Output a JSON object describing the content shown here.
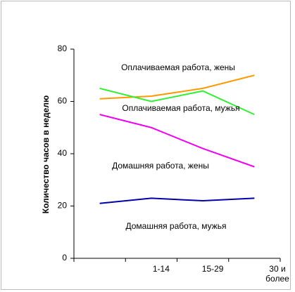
{
  "chart_data": {
    "type": "line",
    "y_label": "Количество часов в неделю",
    "categories": [
      null,
      "1-14",
      "15-29",
      "30 и более"
    ],
    "series": [
      {
        "name": "Оплачиваемая работа, жены",
        "color": "#ff9900",
        "values": [
          61,
          62,
          65,
          70
        ]
      },
      {
        "name": "Оплачиваемая работа, мужья",
        "color": "#33ee33",
        "values": [
          65,
          60,
          64,
          55
        ]
      },
      {
        "name": "Домашняя работа, жены",
        "color": "#ee00ee",
        "values": [
          55,
          50,
          42,
          35
        ]
      },
      {
        "name": "Домашняя работа, мужья",
        "color": "#0000aa",
        "values": [
          21,
          23,
          22,
          23
        ]
      }
    ],
    "ylim": [
      0,
      80
    ],
    "yticks": [
      0,
      20,
      40,
      60,
      80
    ]
  }
}
